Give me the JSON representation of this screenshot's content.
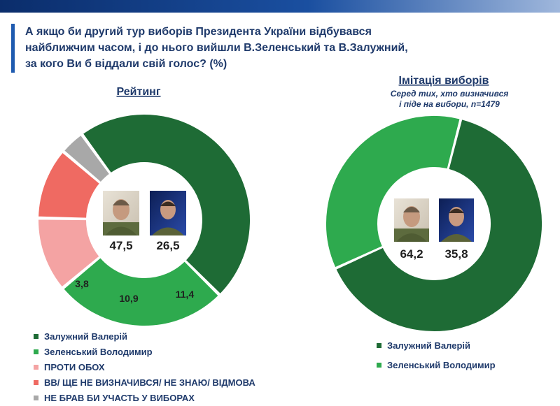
{
  "title": "А якщо би другий тур виборів Президента України відбувався найближчим часом, і до нього вийшли В.Зеленський та В.Залужний, за кого Ви б віддали свій голос? (%)",
  "colors": {
    "zaluzhnyi": "#1e6b35",
    "zelenskyi": "#2eaa4e",
    "against_both": "#f4a3a3",
    "undecided": "#ef6a62",
    "not_voting": "#a8a8a8"
  },
  "chart_data": [
    {
      "type": "pie",
      "variant": "donut",
      "title": "Рейтинг",
      "subtitle": "",
      "slices": [
        {
          "label": "Залужний Валерій",
          "value": 47.5,
          "value_label": "47,5",
          "color": "#1e6b35"
        },
        {
          "label": "Зеленський Володимир",
          "value": 26.5,
          "value_label": "26,5",
          "color": "#2eaa4e"
        },
        {
          "label": "ПРОТИ ОБОХ",
          "value": 11.4,
          "value_label": "11,4",
          "color": "#f4a3a3"
        },
        {
          "label": "ВВ/ ЩЕ НЕ ВИЗНАЧИВСЯ/ НЕ ЗНАЮ/ ВІДМОВА",
          "value": 10.9,
          "value_label": "10,9",
          "color": "#ef6a62"
        },
        {
          "label": "НЕ БРАВ БИ УЧАСТЬ У ВИБОРАХ",
          "value": 3.8,
          "value_label": "3,8",
          "color": "#a8a8a8"
        }
      ]
    },
    {
      "type": "pie",
      "variant": "donut",
      "title": "Імітація виборів",
      "subtitle": "Серед тих, хто визначився і піде на вибори, n=1479",
      "subtitle_lines": [
        "Серед тих, хто визначився",
        "і піде на вибори, n=1479"
      ],
      "slices": [
        {
          "label": "Залужний Валерій",
          "value": 64.2,
          "value_label": "64,2",
          "color": "#1e6b35"
        },
        {
          "label": "Зеленський Володимир",
          "value": 35.8,
          "value_label": "35,8",
          "color": "#2eaa4e"
        }
      ]
    }
  ],
  "legend_left": [
    {
      "label": "Залужний Валерій",
      "color": "#1e6b35"
    },
    {
      "label": "Зеленський Володимир",
      "color": "#2eaa4e"
    },
    {
      "label": "ПРОТИ ОБОХ",
      "color": "#f4a3a3"
    },
    {
      "label": "ВВ/ ЩЕ НЕ ВИЗНАЧИВСЯ/ НЕ ЗНАЮ/ ВІДМОВА",
      "color": "#ef6a62"
    },
    {
      "label": "НЕ БРАВ БИ УЧАСТЬ У ВИБОРАХ",
      "color": "#a8a8a8"
    }
  ],
  "legend_right": [
    {
      "label": "Залужний Валерій",
      "color": "#1e6b35"
    },
    {
      "label": "Зеленський Володимир",
      "color": "#2eaa4e"
    }
  ]
}
